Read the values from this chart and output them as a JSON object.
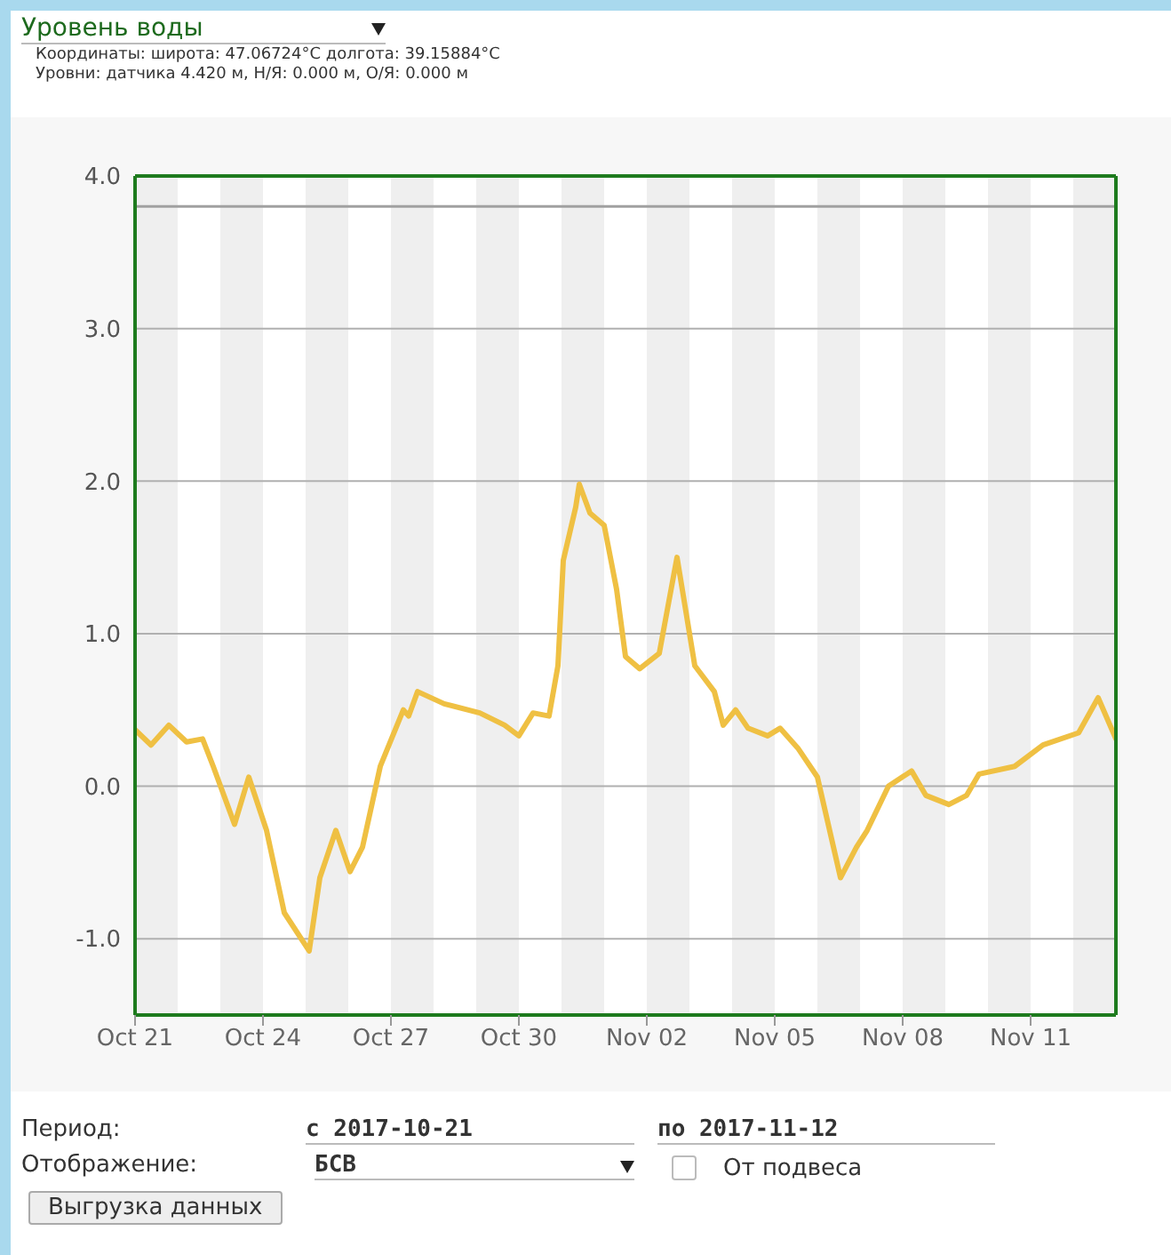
{
  "chart_data": {
    "type": "line",
    "title": "Уровень воды",
    "subtitle": "Координаты: широта: 47.06724°С долгота: 39.15884°С\nУровни: датчика 4.420 м, Н/Я: 0.000 м, О/Я: 0.000 м",
    "x": [
      "2017-10-21T00:00",
      "2017-10-21T09:00",
      "2017-10-21T19:00",
      "2017-10-22T05:00",
      "2017-10-22T14:00",
      "2017-10-22T20:00",
      "2017-10-23T08:00",
      "2017-10-23T16:00",
      "2017-10-24T02:00",
      "2017-10-24T12:00",
      "2017-10-25T02:00",
      "2017-10-25T08:00",
      "2017-10-25T17:00",
      "2017-10-26T01:00",
      "2017-10-26T08:00",
      "2017-10-26T18:00",
      "2017-10-27T07:00",
      "2017-10-27T10:00",
      "2017-10-27T15:00",
      "2017-10-28T06:00",
      "2017-10-29T02:00",
      "2017-10-29T16:00",
      "2017-10-30T00:00",
      "2017-10-30T08:00",
      "2017-10-30T17:00",
      "2017-10-30T22:00",
      "2017-10-31T01:00",
      "2017-10-31T08:00",
      "2017-10-31T10:00",
      "2017-10-31T16:00",
      "2017-11-01T00:00",
      "2017-11-01T07:00",
      "2017-11-01T12:00",
      "2017-11-01T20:00",
      "2017-11-02T07:00",
      "2017-11-02T17:00",
      "2017-11-03T03:00",
      "2017-11-03T14:00",
      "2017-11-03T19:00",
      "2017-11-04T02:00",
      "2017-11-04T09:00",
      "2017-11-04T20:00",
      "2017-11-05T03:00",
      "2017-11-05T13:00",
      "2017-11-06T00:00",
      "2017-11-06T13:00",
      "2017-11-06T22:00",
      "2017-11-07T04:00",
      "2017-11-07T16:00",
      "2017-11-08T05:00",
      "2017-11-08T13:00",
      "2017-11-09T02:00",
      "2017-11-09T12:00",
      "2017-11-09T19:00",
      "2017-11-10T15:00",
      "2017-11-11T07:00",
      "2017-11-12T03:00",
      "2017-11-12T14:00",
      "2017-11-13T00:00"
    ],
    "series": [
      {
        "color": "#efc043",
        "values": [
          0.37,
          0.27,
          0.4,
          0.29,
          0.31,
          0.13,
          -0.25,
          0.06,
          -0.29,
          -0.83,
          -1.08,
          -0.6,
          -0.29,
          -0.56,
          -0.4,
          0.13,
          0.5,
          0.46,
          0.62,
          0.54,
          0.48,
          0.4,
          0.33,
          0.48,
          0.46,
          0.79,
          1.48,
          1.83,
          1.98,
          1.79,
          1.71,
          1.29,
          0.85,
          0.77,
          0.87,
          1.5,
          0.79,
          0.62,
          0.4,
          0.5,
          0.38,
          0.33,
          0.38,
          0.25,
          0.06,
          -0.6,
          -0.4,
          -0.29,
          0.0,
          0.1,
          -0.06,
          -0.12,
          -0.06,
          0.08,
          0.13,
          0.27,
          0.35,
          0.58,
          0.31
        ]
      }
    ],
    "xlim": [
      "2017-10-21",
      "2017-11-13"
    ],
    "xticks": [
      {
        "value": "2017-10-21",
        "label": "Oct 21"
      },
      {
        "value": "2017-10-24",
        "label": "Oct 24"
      },
      {
        "value": "2017-10-27",
        "label": "Oct 27"
      },
      {
        "value": "2017-10-30",
        "label": "Oct 30"
      },
      {
        "value": "2017-11-02",
        "label": "Nov 02"
      },
      {
        "value": "2017-11-05",
        "label": "Nov 05"
      },
      {
        "value": "2017-11-08",
        "label": "Nov 08"
      },
      {
        "value": "2017-11-11",
        "label": "Nov 11"
      }
    ],
    "ylim": [
      -1.5,
      4.0
    ],
    "yticks": [
      {
        "value": -1,
        "label": "-1.0"
      },
      {
        "value": 0,
        "label": "0.0"
      },
      {
        "value": 1,
        "label": "1.0"
      },
      {
        "value": 2,
        "label": "2.0"
      },
      {
        "value": 3,
        "label": "3.0"
      },
      {
        "value": 4,
        "label": "4.0"
      }
    ],
    "grid": "y",
    "marker": "none",
    "line_style": "solid",
    "ref_lines": [
      {
        "axis": "y",
        "value": 3.8,
        "color": "#a0a0a0"
      }
    ],
    "bands": [
      {
        "axis": "x",
        "from": "2017-10-21",
        "to": "2017-10-22",
        "color": "#efefef"
      },
      {
        "axis": "x",
        "from": "2017-10-23",
        "to": "2017-10-24",
        "color": "#efefef"
      },
      {
        "axis": "x",
        "from": "2017-10-25",
        "to": "2017-10-26",
        "color": "#efefef"
      },
      {
        "axis": "x",
        "from": "2017-10-27",
        "to": "2017-10-28",
        "color": "#efefef"
      },
      {
        "axis": "x",
        "from": "2017-10-29",
        "to": "2017-10-30",
        "color": "#efefef"
      },
      {
        "axis": "x",
        "from": "2017-10-31",
        "to": "2017-11-01",
        "color": "#efefef"
      },
      {
        "axis": "x",
        "from": "2017-11-02",
        "to": "2017-11-03",
        "color": "#efefef"
      },
      {
        "axis": "x",
        "from": "2017-11-04",
        "to": "2017-11-05",
        "color": "#efefef"
      },
      {
        "axis": "x",
        "from": "2017-11-06",
        "to": "2017-11-07",
        "color": "#efefef"
      },
      {
        "axis": "x",
        "from": "2017-11-08",
        "to": "2017-11-09",
        "color": "#efefef"
      },
      {
        "axis": "x",
        "from": "2017-11-10",
        "to": "2017-11-11",
        "color": "#efefef"
      },
      {
        "axis": "x",
        "from": "2017-11-12",
        "to": "2017-11-13",
        "color": "#efefef"
      }
    ],
    "annotations": [
      "Период:",
      "с 2017-10-21",
      "по 2017-11-12",
      "Отображение:",
      "БСВ",
      "От подвеса",
      "Выгрузка данных"
    ]
  }
}
